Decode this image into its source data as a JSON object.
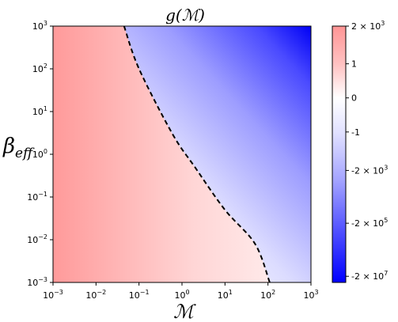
{
  "chart_data": {
    "type": "heatmap",
    "title": "g(ℳ)",
    "xlabel": "ℳ",
    "ylabel": "β",
    "ylabel_sub": "eff",
    "x_scale": "log",
    "y_scale": "log",
    "xlim": [
      0.001,
      1000
    ],
    "ylim": [
      0.001,
      1000
    ],
    "x_ticks": [
      {
        "value": 0.001,
        "base": "10",
        "exp": "−3"
      },
      {
        "value": 0.01,
        "base": "10",
        "exp": "−2"
      },
      {
        "value": 0.1,
        "base": "10",
        "exp": "−1"
      },
      {
        "value": 1,
        "base": "10",
        "exp": "0"
      },
      {
        "value": 10,
        "base": "10",
        "exp": "1"
      },
      {
        "value": 100,
        "base": "10",
        "exp": "2"
      },
      {
        "value": 1000,
        "base": "10",
        "exp": "3"
      }
    ],
    "y_ticks": [
      {
        "value": 0.001,
        "base": "10",
        "exp": "−3"
      },
      {
        "value": 0.01,
        "base": "10",
        "exp": "−2"
      },
      {
        "value": 0.1,
        "base": "10",
        "exp": "−1"
      },
      {
        "value": 1,
        "base": "10",
        "exp": "0"
      },
      {
        "value": 10,
        "base": "10",
        "exp": "1"
      },
      {
        "value": 100,
        "base": "10",
        "exp": "2"
      },
      {
        "value": 1000,
        "base": "10",
        "exp": "3"
      }
    ],
    "zero_contour": {
      "style": "dashed",
      "color": "#000000",
      "points": [
        [
          0.045,
          1000
        ],
        [
          0.1,
          100
        ],
        [
          0.6,
          3
        ],
        [
          2,
          0.5
        ],
        [
          10,
          0.05
        ],
        [
          50,
          0.008
        ],
        [
          110,
          0.001
        ]
      ]
    },
    "colormap": {
      "name": "bwr",
      "positive_color": "#ff0000",
      "zero_color": "#ffffff",
      "negative_color": "#0000ff"
    },
    "colorbar": {
      "ticks": [
        {
          "label": "2 × 10",
          "exp": "3",
          "pos": 0.0
        },
        {
          "label": "1",
          "exp": "",
          "pos": 0.147
        },
        {
          "label": "0",
          "exp": "",
          "pos": 0.28
        },
        {
          "label": "-1",
          "exp": "",
          "pos": 0.413
        },
        {
          "label": "-2 × 10",
          "exp": "3",
          "pos": 0.563
        },
        {
          "label": "-2 × 10",
          "exp": "5",
          "pos": 0.769
        },
        {
          "label": "-2 × 10",
          "exp": "7",
          "pos": 0.976
        }
      ]
    }
  }
}
